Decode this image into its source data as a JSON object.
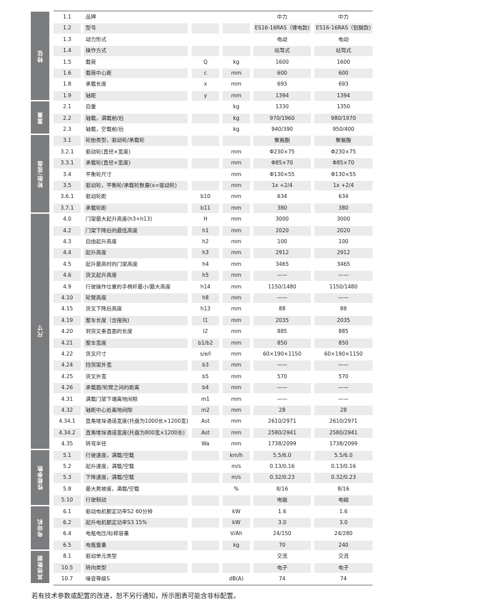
{
  "groups": [
    {
      "label": "特征",
      "rows": 8
    },
    {
      "label": "重量",
      "rows": 3
    },
    {
      "label": "轮胎/底盘",
      "rows": 7
    },
    {
      "label": "尺寸",
      "rows": 21
    },
    {
      "label": "性能参数",
      "rows": 5
    },
    {
      "label": "电动机",
      "rows": 4
    },
    {
      "label": "其他数据",
      "rows": 3
    }
  ],
  "rows": [
    [
      "1.1",
      "品牌",
      "",
      "",
      "中力",
      "中力"
    ],
    [
      "1.2",
      "型号",
      "",
      "",
      "ES16-16RAS（锂电款)",
      "ES16-16RAS（铅酸款)"
    ],
    [
      "1.3",
      "动力形式",
      "",
      "",
      "电动",
      "电动"
    ],
    [
      "1.4",
      "操作方式",
      "",
      "",
      "站驾式",
      "站驾式"
    ],
    [
      "1.5",
      "载荷",
      "Q",
      "kg",
      "1600",
      "1600"
    ],
    [
      "1.6",
      "载荷中心距",
      "c",
      "mm",
      "600",
      "600"
    ],
    [
      "1.8",
      "承载长度",
      "x",
      "mm",
      "693",
      "693"
    ],
    [
      "1.9",
      "轴距",
      "y",
      "mm",
      "1394",
      "1394"
    ],
    [
      "2.1",
      "自重",
      "",
      "kg",
      "1330",
      "1350"
    ],
    [
      "2.2",
      "轴载，满载前/后",
      "",
      "kg",
      "970/1960",
      "980/1970"
    ],
    [
      "2.3",
      "轴载，空载前/后",
      "",
      "kg",
      "940/390",
      "950/400"
    ],
    [
      "3.1",
      "轮胎类型，驱动轮/承载轮",
      "",
      "",
      "聚氨酯",
      "聚氨酯"
    ],
    [
      "3.2.1",
      "驱动轮(直径×宽度)",
      "",
      "mm",
      "Φ230×75",
      "Φ230×75"
    ],
    [
      "3.3.1",
      "承载轮(直径×宽度)",
      "",
      "mm",
      "Φ85×70",
      "Φ85×70"
    ],
    [
      "3.4",
      "平衡轮尺寸",
      "",
      "mm",
      "Φ130×55",
      "Φ130×55"
    ],
    [
      "3.5",
      "驱动轮，平衡轮/承载轮数量(x=驱动轮)",
      "",
      "mm",
      "1x +2/4",
      "1x +2/4"
    ],
    [
      "3.6.1",
      "驱动轮距",
      "b10",
      "mm",
      "634",
      "634"
    ],
    [
      "3.7.1",
      "承载轮距",
      "b11",
      "mm",
      "380",
      "380"
    ],
    [
      "4.0",
      "门架最大起升高度(h3+h13)",
      "H",
      "mm",
      "3000",
      "3000"
    ],
    [
      "4.2",
      "门架下降后的最低高度",
      "h1",
      "mm",
      "2020",
      "2020"
    ],
    [
      "4.3",
      "自由起升高度",
      "h2",
      "mm",
      "100",
      "100"
    ],
    [
      "4.4",
      "起升高度",
      "h3",
      "mm",
      "2912",
      "2912"
    ],
    [
      "4.5",
      "起升最高时的门架高度",
      "h4",
      "mm",
      "3465",
      "3465"
    ],
    [
      "4.6",
      "货叉起升高度",
      "h5",
      "mm",
      "——",
      "——"
    ],
    [
      "4.9",
      "行驶操作位置的手柄杆最小/最大高度",
      "h14",
      "mm",
      "1150/1480",
      "1150/1480"
    ],
    [
      "4.10",
      "轮臂高度",
      "h8",
      "mm",
      "——",
      "——"
    ],
    [
      "4.15",
      "货叉下降后高度",
      "h13",
      "mm",
      "88",
      "88"
    ],
    [
      "4.19",
      "整车长度（含拖钩)",
      "l1",
      "mm",
      "2035",
      "2035"
    ],
    [
      "4.20",
      "到货叉垂直面的长度",
      "l2",
      "mm",
      "885",
      "885"
    ],
    [
      "4.21",
      "整车宽度",
      "b1/b2",
      "mm",
      "850",
      "850"
    ],
    [
      "4.22",
      "货叉尺寸",
      "s/e/l",
      "mm",
      "60×190×1150",
      "60×190×1150"
    ],
    [
      "4.24",
      "挡货架外宽",
      "b3",
      "mm",
      "——",
      "——"
    ],
    [
      "4.25",
      "货叉外宽",
      "b5",
      "mm",
      "570",
      "570"
    ],
    [
      "4.26",
      "承载面/轮臂之间的距离",
      "b4",
      "mm",
      "——",
      "——"
    ],
    [
      "4.31",
      "满载门架下端离地间隙",
      "m1",
      "mm",
      "——",
      "——"
    ],
    [
      "4.32",
      "轴距中心处离地间隙",
      "m2",
      "mm",
      "28",
      "28"
    ],
    [
      "4.34.1",
      "直角堆垛通道宽度(托盘为1000长×1200宽)",
      "Ast",
      "mm",
      "2610/2971",
      "2610/2971"
    ],
    [
      "4.34.2",
      "直角堆垛通道宽度(托盘为800宽×1200长)",
      "Ast",
      "mm",
      "2580/2941",
      "2580/2941"
    ],
    [
      "4.35",
      "转弯半径",
      "Wa",
      "mm",
      "1738/2099",
      "1738/2099"
    ],
    [
      "5.1",
      "行驶速度，满载/空载",
      "",
      "km/h",
      "5.5/6.0",
      "5.5/6.0"
    ],
    [
      "5.2",
      "起升速度，满载/空载",
      "",
      "m/s",
      "0.13/0.16",
      "0.13/0.16"
    ],
    [
      "5.3",
      "下降速度，满载/空载",
      "",
      "m/s",
      "0.32/0.23",
      "0.32/0.23"
    ],
    [
      "5.8",
      "最大爬坡度，满载/空载",
      "",
      "%",
      "8/16",
      "8/16"
    ],
    [
      "5.10",
      "行驶制动",
      "",
      "",
      "电磁",
      "电磁"
    ],
    [
      "6.1",
      "驱动电机额定功率S2 60分钟",
      "",
      "kW",
      "1.6",
      "1.6"
    ],
    [
      "6.2",
      "起升电机额定功率S3 15%",
      "",
      "kW",
      "3.0",
      "3.0"
    ],
    [
      "6.4",
      "电瓶电压/标称容量",
      "",
      "V/Ah",
      "24/150",
      "24/280"
    ],
    [
      "6.5",
      "电瓶重量",
      "",
      "kg",
      "70",
      "240"
    ],
    [
      "8.1",
      "驱动单元类型",
      "",
      "",
      "交流",
      "交流"
    ],
    [
      "10.5",
      "转向类型",
      "",
      "",
      "电子",
      "电子"
    ],
    [
      "10.7",
      "噪音等级S",
      "",
      "dB(A)",
      "74",
      "74"
    ]
  ],
  "footnote": "若有技术参数或配置的改进，恕不另行通知，所示图表可能含非标配置。",
  "colors": {
    "sidebar": "#7b7c7e",
    "shade": "#ebebeb",
    "rule": "#b5b5b5"
  }
}
